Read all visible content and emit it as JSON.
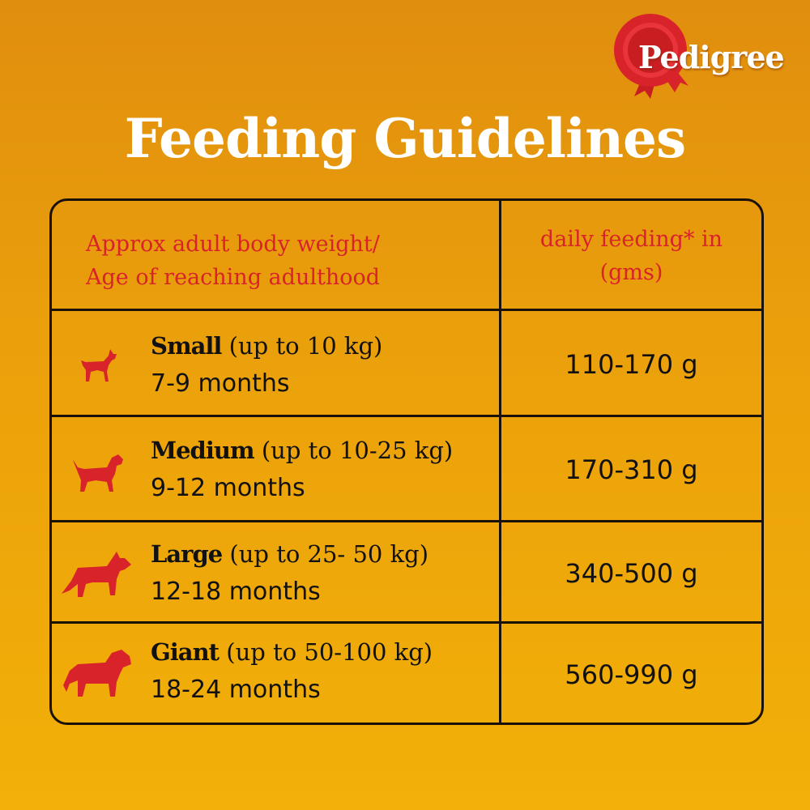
{
  "brand": {
    "logo_text": "Pedigree",
    "colors": {
      "red": "#D8232A",
      "text": "#111111",
      "background": "#EBA10B"
    }
  },
  "title": "Feeding Guidelines",
  "table": {
    "headers": [
      "Approx adult body weight/",
      "Age of reaching adulthood",
      "daily feeding* in",
      "(gms)"
    ],
    "rows": [
      {
        "icon": "small-dog-icon",
        "size": "Small",
        "range": "(up to 10 kg)",
        "age": "7-9 months",
        "amount": "110-170 g"
      },
      {
        "icon": "medium-dog-icon",
        "size": "Medium",
        "range": "(up to 10-25 kg)",
        "age": "9-12 months",
        "amount": "170-310 g"
      },
      {
        "icon": "large-dog-icon",
        "size": "Large",
        "range": "(up to 25- 50 kg)",
        "age": "12-18 months",
        "amount": "340-500 g"
      },
      {
        "icon": "giant-dog-icon",
        "size": "Giant",
        "range": "(up to 50-100 kg)",
        "age": "18-24 months",
        "amount": "560-990 g"
      }
    ]
  }
}
